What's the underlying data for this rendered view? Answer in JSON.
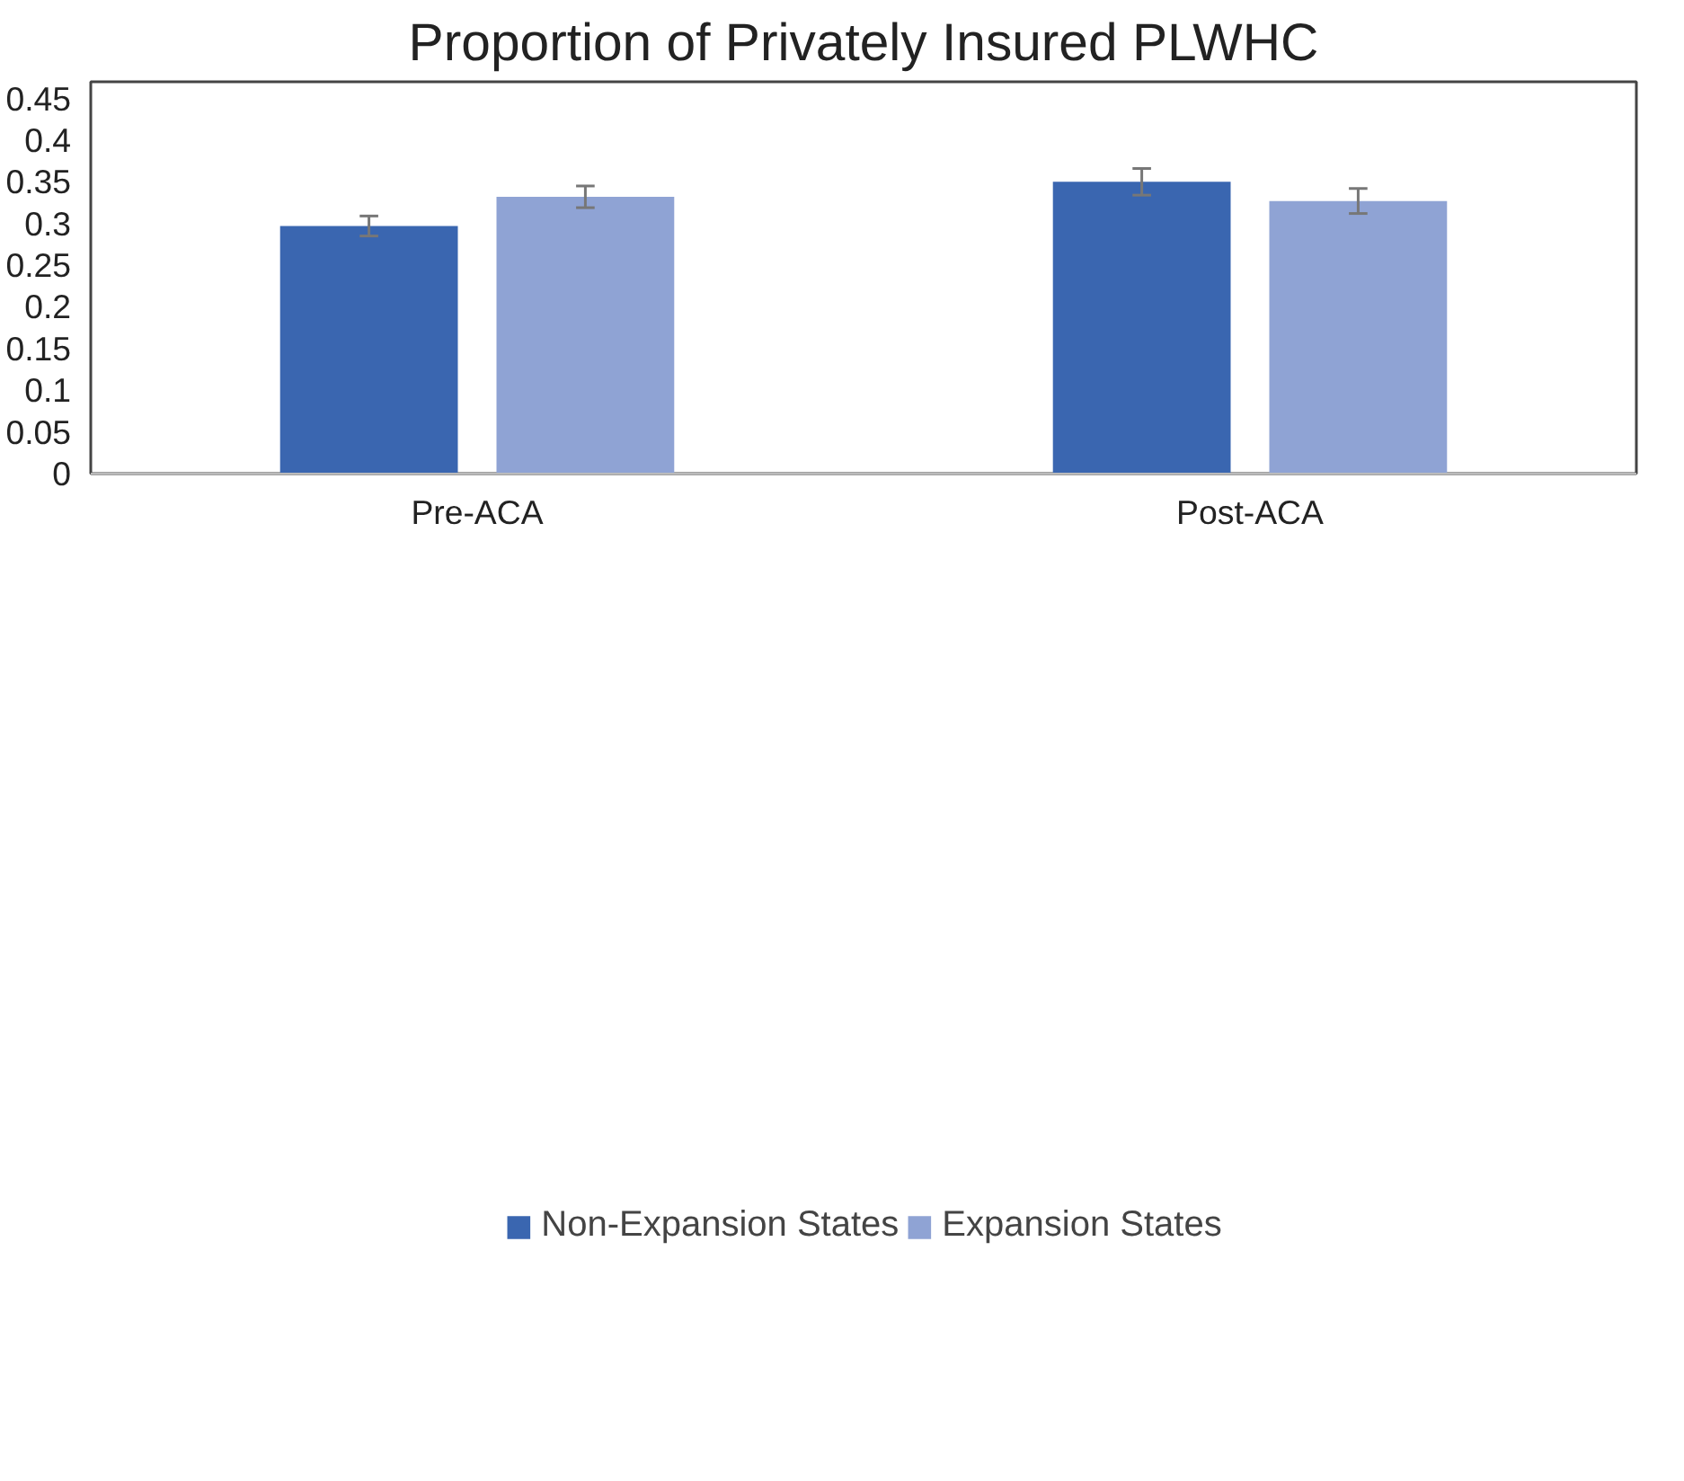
{
  "chart_data": {
    "type": "bar",
    "title": "Proportion of Privately Insured PLWHC",
    "categories": [
      "Pre-ACA",
      "Post-ACA"
    ],
    "series": [
      {
        "name": "Non-Expansion States",
        "color": "#3a66b0",
        "values": [
          0.297,
          0.35
        ],
        "errors": [
          0.012,
          0.016
        ]
      },
      {
        "name": "Expansion States",
        "color": "#8fa3d4",
        "values": [
          0.332,
          0.327
        ],
        "errors": [
          0.013,
          0.015
        ]
      }
    ],
    "ylim": [
      0,
      0.47
    ],
    "yticks": [
      0,
      0.05,
      0.1,
      0.15,
      0.2,
      0.25,
      0.3,
      0.35,
      0.4,
      0.45
    ],
    "grid": false,
    "legend": "bottom"
  }
}
